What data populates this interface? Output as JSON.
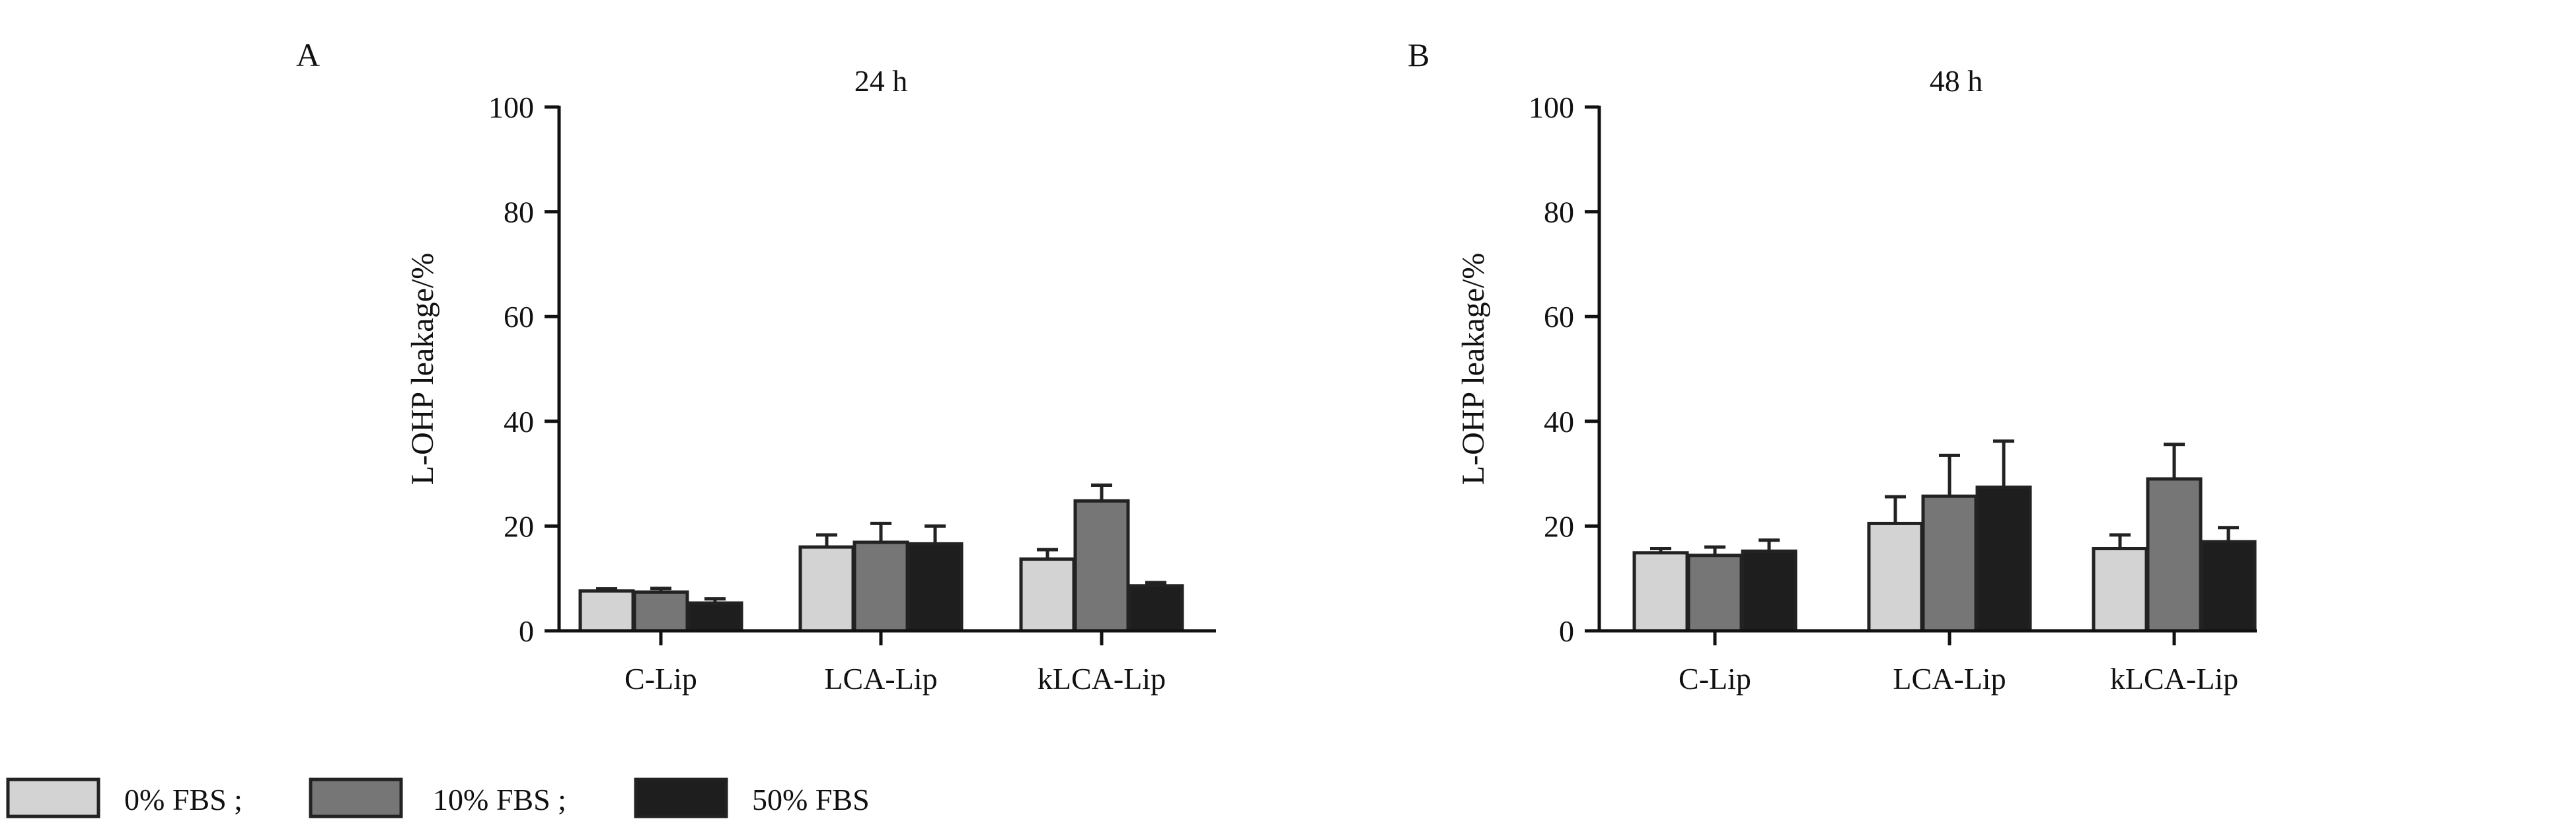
{
  "chart_data": [
    {
      "type": "bar",
      "panel_label": "A",
      "title": "24 h",
      "xlabel": "",
      "ylabel": "L-OHP leakage/%",
      "ylim": [
        0,
        100
      ],
      "yticks": [
        "0",
        "20",
        "40",
        "60",
        "80",
        "100"
      ],
      "categories": [
        "C-Lip",
        "LCA-Lip",
        "kLCA-Lip"
      ],
      "series": [
        {
          "name": "0% FBS",
          "values": [
            7.6,
            16.0,
            13.7
          ],
          "error_upper": [
            8.0,
            18.3,
            15.5
          ]
        },
        {
          "name": "10% FBS",
          "values": [
            7.4,
            16.9,
            24.8
          ],
          "error_upper": [
            8.1,
            20.5,
            27.8
          ]
        },
        {
          "name": "50% FBS",
          "values": [
            5.3,
            16.6,
            8.6
          ],
          "error_upper": [
            6.1,
            20.0,
            9.2
          ]
        }
      ]
    },
    {
      "type": "bar",
      "panel_label": "B",
      "title": "48 h",
      "xlabel": "",
      "ylabel": "L-OHP leakage/%",
      "ylim": [
        0,
        100
      ],
      "yticks": [
        "0",
        "20",
        "40",
        "60",
        "80",
        "100"
      ],
      "categories": [
        "C-Lip",
        "LCA-Lip",
        "kLCA-Lip"
      ],
      "series": [
        {
          "name": "0% FBS",
          "values": [
            14.9,
            20.5,
            15.7
          ],
          "error_upper": [
            15.7,
            25.6,
            18.3
          ]
        },
        {
          "name": "10% FBS",
          "values": [
            14.4,
            25.7,
            29.0
          ],
          "error_upper": [
            16.0,
            33.5,
            35.6
          ]
        },
        {
          "name": "50% FBS",
          "values": [
            15.2,
            27.4,
            17.0
          ],
          "error_upper": [
            17.3,
            36.2,
            19.7
          ]
        }
      ]
    }
  ],
  "legend": {
    "items": [
      {
        "label": "0% FBS ;",
        "color": "#d3d3d3"
      },
      {
        "label": "10% FBS ;",
        "color": "#767676"
      },
      {
        "label": "50% FBS",
        "color": "#1e1e1e"
      }
    ]
  }
}
